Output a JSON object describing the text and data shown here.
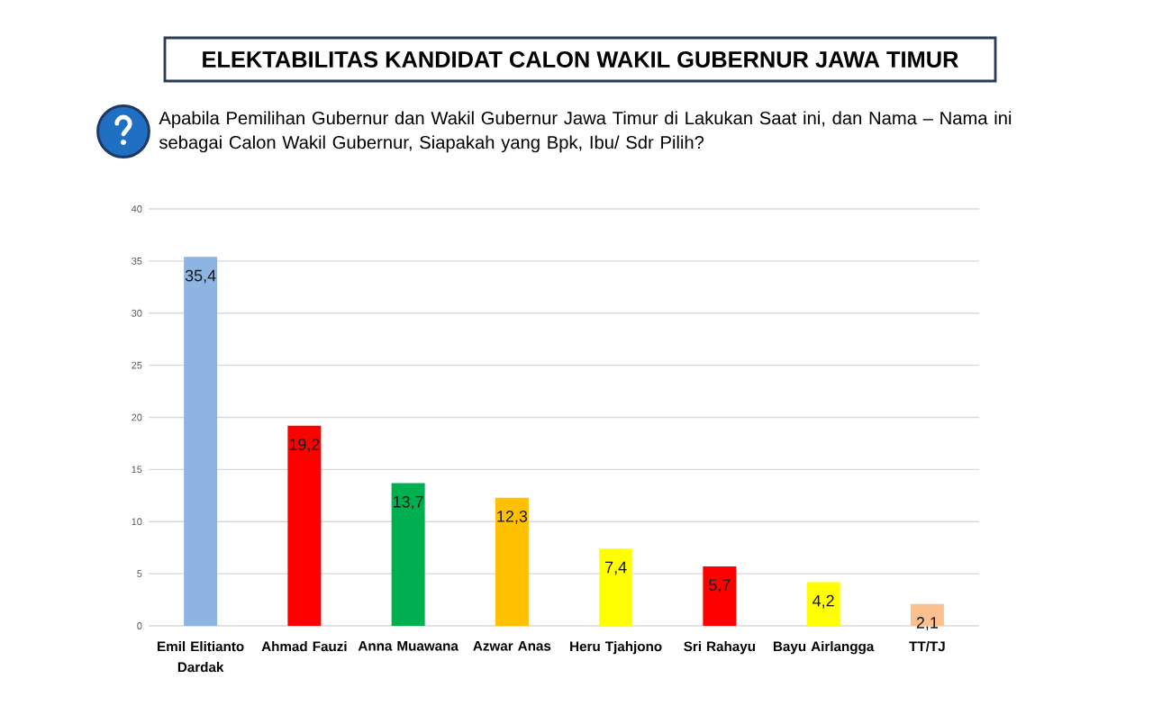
{
  "chart_data": {
    "type": "bar",
    "title": "ELEKTABILITAS KANDIDAT CALON WAKIL GUBERNUR JAWA TIMUR",
    "subtitle": "Apabila Pemilihan Gubernur dan Wakil Gubernur Jawa Timur di Lakukan Saat ini, dan Nama – Nama ini sebagai Calon Wakil Gubernur, Siapakah yang Bpk, Ibu/ Sdr Pilih?",
    "categories": [
      "Emil Elitianto Dardak",
      "Ahmad Fauzi",
      "Anna Muawana",
      "Azwar Anas",
      "Heru Tjahjono",
      "Sri Rahayu",
      "Bayu Airlangga",
      "TT/TJ"
    ],
    "values": [
      35.4,
      19.2,
      13.7,
      12.3,
      7.4,
      5.7,
      4.2,
      2.1
    ],
    "colors": [
      "#8eb4e3",
      "#ff0000",
      "#00b050",
      "#ffc000",
      "#ffff00",
      "#ff0000",
      "#ffff00",
      "#fac090"
    ],
    "value_labels": [
      "35,4",
      "19,2",
      "13,7",
      "12,3",
      "7,4",
      "5,7",
      "4,2",
      "2,1"
    ],
    "ylim": [
      0,
      40
    ],
    "yticks": [
      0,
      5,
      10,
      15,
      20,
      25,
      30,
      35,
      40
    ],
    "grid": "y"
  }
}
